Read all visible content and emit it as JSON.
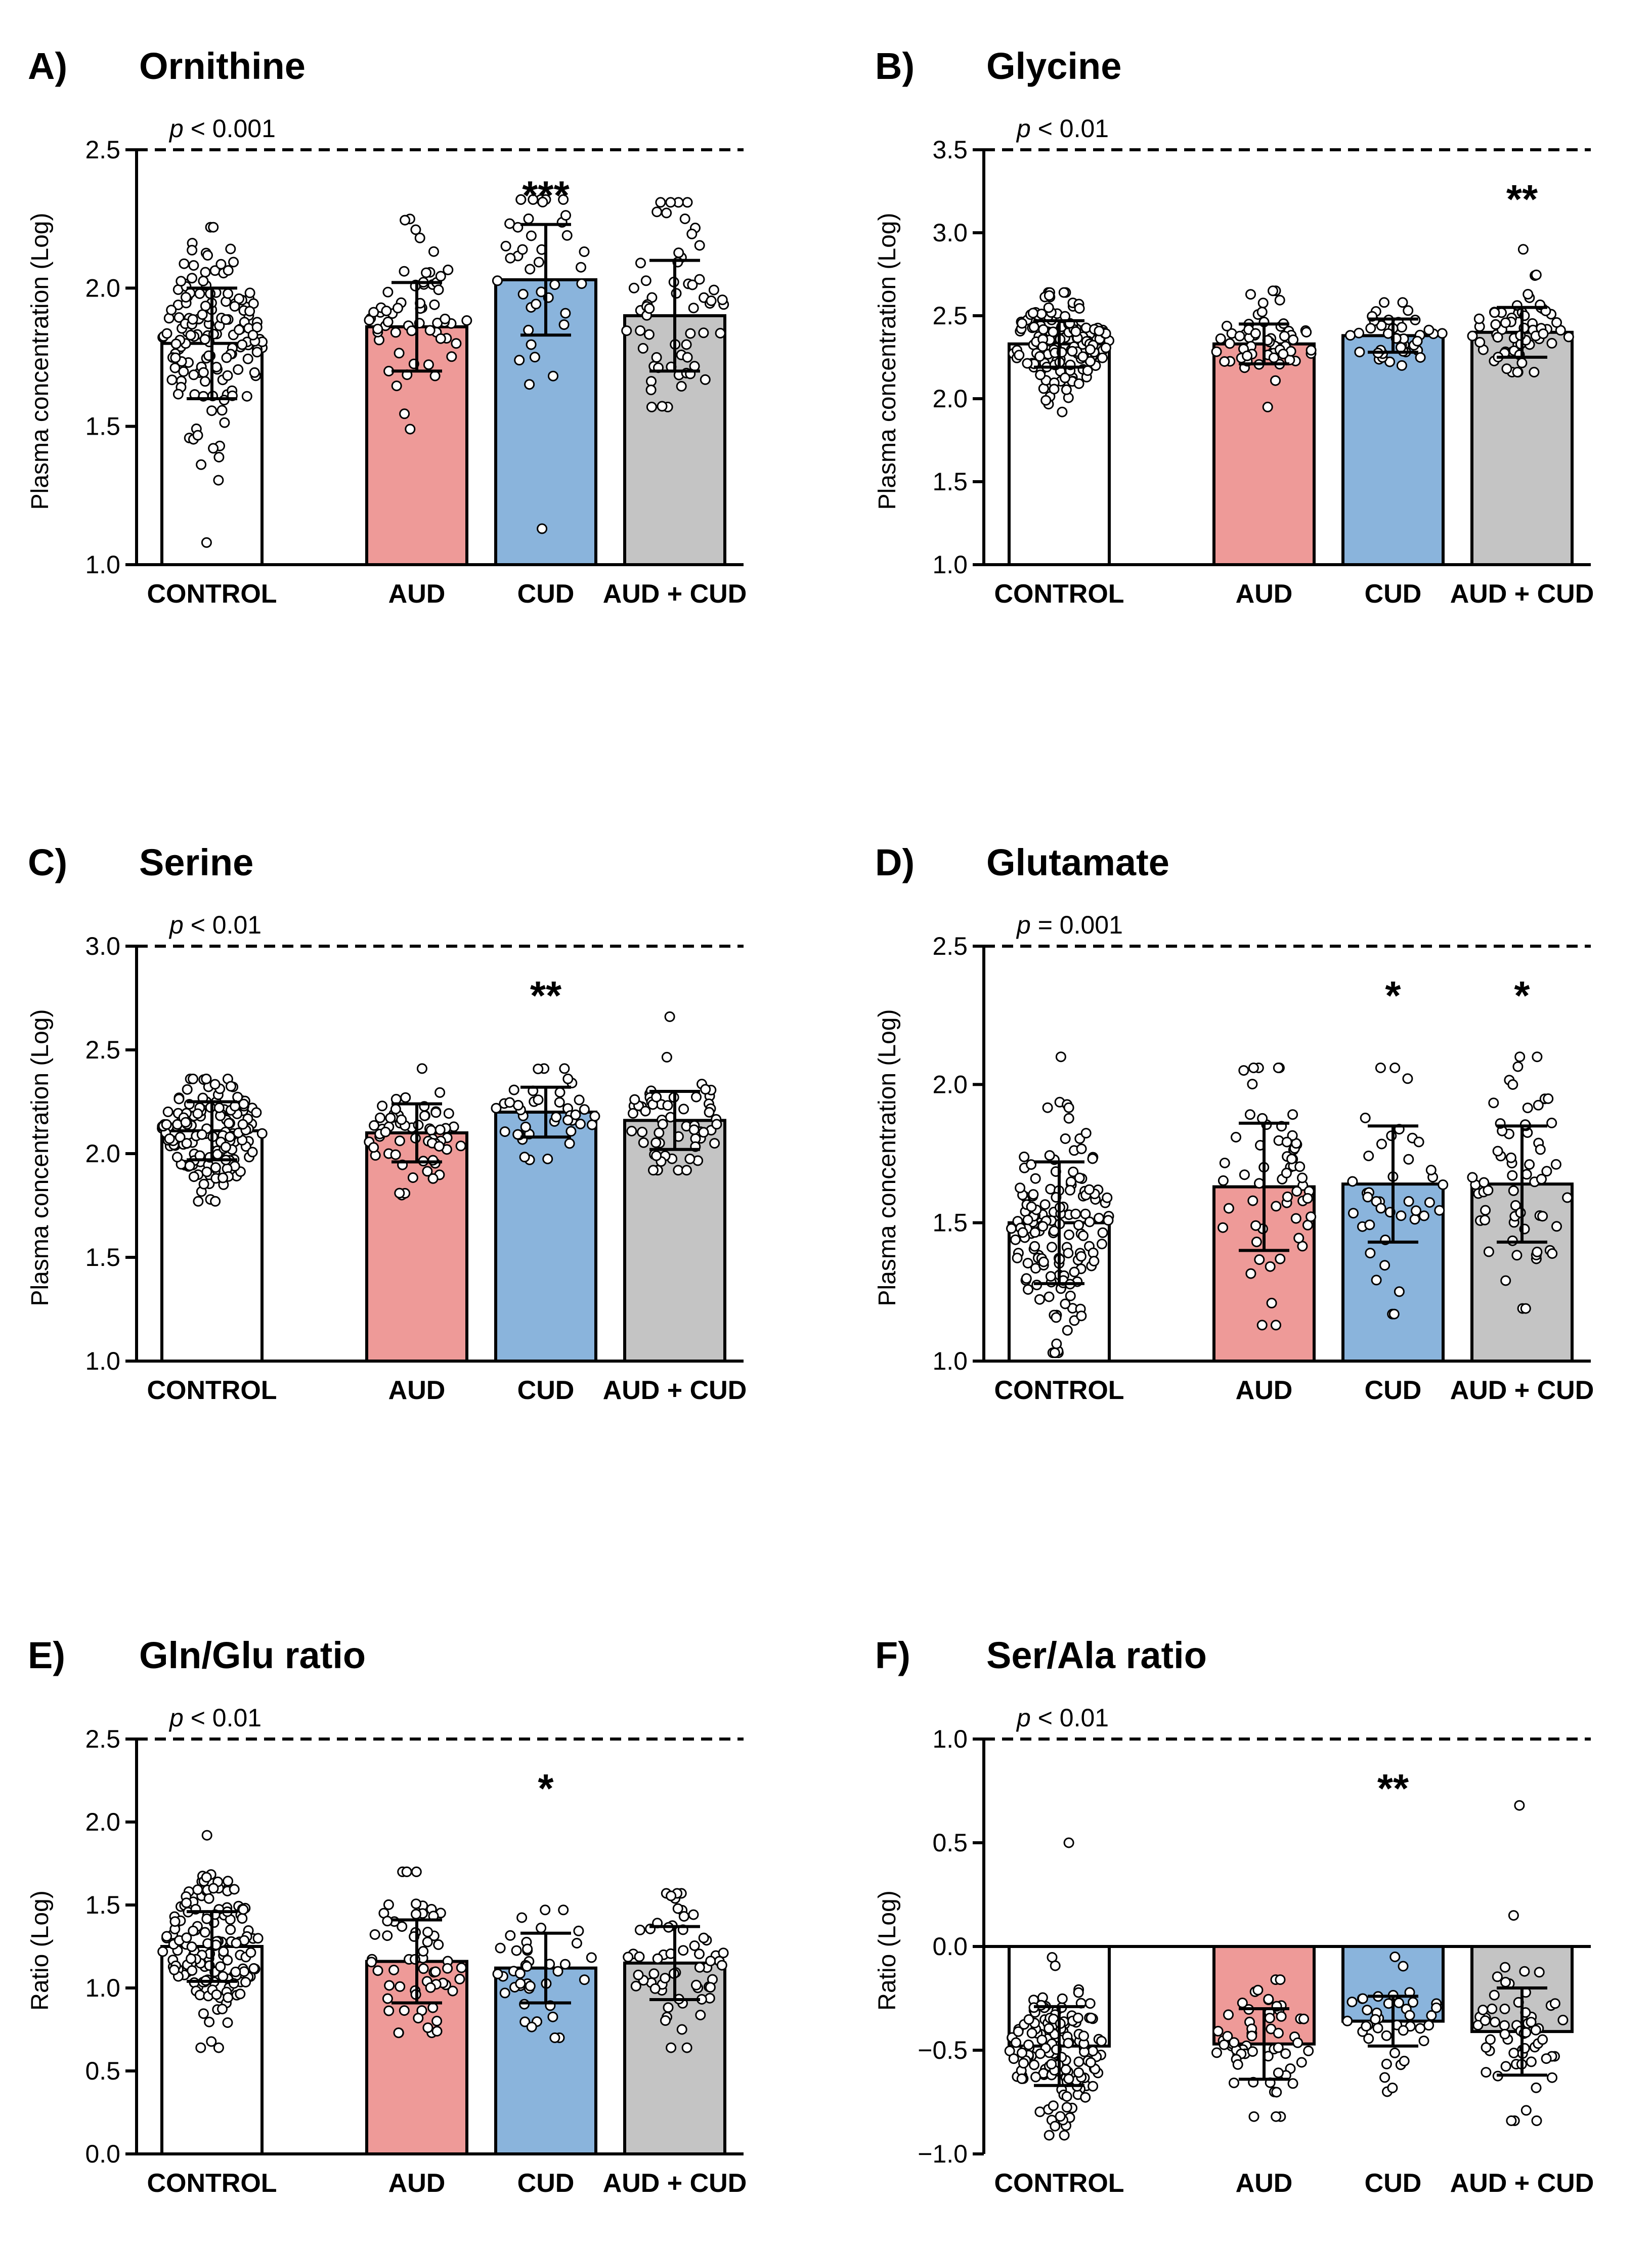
{
  "figure": {
    "category_colors": {
      "CONTROL": "#ffffff",
      "AUD": "#ee9a98",
      "CUD": "#8ab4dc",
      "AUD + CUD": "#c4c4c4"
    }
  },
  "chart_data": [
    {
      "type": "bar",
      "letter": "A)",
      "title": "Ornithine",
      "ylabel": "Plasma concentration (Log)",
      "ylim": [
        1.0,
        2.5
      ],
      "yticks": [
        "1.0",
        "1.5",
        "2.0",
        "2.5"
      ],
      "categories": [
        "CONTROL",
        "AUD",
        "CUD",
        "AUD + CUD"
      ],
      "values": [
        1.8,
        1.86,
        2.03,
        1.9
      ],
      "sd": [
        0.2,
        0.16,
        0.2,
        0.2
      ],
      "n": [
        150,
        60,
        40,
        60
      ],
      "range": [
        [
          1.08,
          2.22
        ],
        [
          1.49,
          2.25
        ],
        [
          1.13,
          2.32
        ],
        [
          1.57,
          2.31
        ]
      ],
      "pvalue_prefix": "p",
      "pvalue_rest": " < 0.001",
      "pvalue_line": 2.5,
      "significance": [
        "",
        "",
        "***",
        ""
      ]
    },
    {
      "type": "bar",
      "letter": "B)",
      "title": "Glycine",
      "ylabel": "Plasma concentration (Log)",
      "ylim": [
        1.0,
        3.5
      ],
      "yticks": [
        "1.0",
        "1.5",
        "2.0",
        "2.5",
        "3.0",
        "3.5"
      ],
      "categories": [
        "CONTROL",
        "AUD",
        "CUD",
        "AUD + CUD"
      ],
      "values": [
        2.33,
        2.33,
        2.38,
        2.4
      ],
      "sd": [
        0.14,
        0.12,
        0.1,
        0.15
      ],
      "n": [
        150,
        60,
        40,
        60
      ],
      "range": [
        [
          1.92,
          2.64
        ],
        [
          1.95,
          2.65
        ],
        [
          2.2,
          2.58
        ],
        [
          2.16,
          2.9
        ]
      ],
      "pvalue_prefix": "p",
      "pvalue_rest": " < 0.01",
      "pvalue_line": 3.5,
      "significance": [
        "",
        "",
        "",
        "**"
      ]
    },
    {
      "type": "bar",
      "letter": "C)",
      "title": "Serine",
      "ylabel": "Plasma concentration (Log)",
      "ylim": [
        1.0,
        3.0
      ],
      "yticks": [
        "1.0",
        "1.5",
        "2.0",
        "2.5",
        "3.0"
      ],
      "categories": [
        "CONTROL",
        "AUD",
        "CUD",
        "AUD + CUD"
      ],
      "values": [
        2.11,
        2.1,
        2.2,
        2.16
      ],
      "sd": [
        0.14,
        0.14,
        0.12,
        0.14
      ],
      "n": [
        150,
        60,
        40,
        60
      ],
      "range": [
        [
          1.77,
          2.36
        ],
        [
          1.8,
          2.41
        ],
        [
          1.97,
          2.41
        ],
        [
          1.92,
          2.66
        ]
      ],
      "pvalue_prefix": "p",
      "pvalue_rest": " < 0.01",
      "pvalue_line": 3.0,
      "significance": [
        "",
        "",
        "**",
        ""
      ]
    },
    {
      "type": "bar",
      "letter": "D)",
      "title": "Glutamate",
      "ylabel": "Plasma concentration (Log)",
      "ylim": [
        1.0,
        2.5
      ],
      "yticks": [
        "1.0",
        "1.5",
        "2.0",
        "2.5"
      ],
      "categories": [
        "CONTROL",
        "AUD",
        "CUD",
        "AUD + CUD"
      ],
      "values": [
        1.5,
        1.63,
        1.64,
        1.64
      ],
      "sd": [
        0.22,
        0.23,
        0.21,
        0.21
      ],
      "n": [
        150,
        60,
        40,
        60
      ],
      "range": [
        [
          1.03,
          2.1
        ],
        [
          1.13,
          2.06
        ],
        [
          1.17,
          2.06
        ],
        [
          1.19,
          2.1
        ]
      ],
      "pvalue_prefix": "p",
      "pvalue_rest": " = 0.001",
      "pvalue_line": 2.5,
      "significance": [
        "",
        "",
        "*",
        "*"
      ]
    },
    {
      "type": "bar",
      "letter": "E)",
      "title": "Gln/Glu ratio",
      "ylabel": "Ratio (Log)",
      "ylim": [
        0.0,
        2.5
      ],
      "yticks": [
        "0.0",
        "0.5",
        "1.0",
        "1.5",
        "2.0",
        "2.5"
      ],
      "categories": [
        "CONTROL",
        "AUD",
        "CUD",
        "AUD + CUD"
      ],
      "values": [
        1.25,
        1.16,
        1.12,
        1.15
      ],
      "sd": [
        0.21,
        0.25,
        0.21,
        0.22
      ],
      "n": [
        150,
        60,
        40,
        60
      ],
      "range": [
        [
          0.64,
          1.92
        ],
        [
          0.73,
          1.7
        ],
        [
          0.7,
          1.47
        ],
        [
          0.64,
          1.57
        ]
      ],
      "pvalue_prefix": "p",
      "pvalue_rest": " < 0.01",
      "pvalue_line": 2.5,
      "significance": [
        "",
        "",
        "*",
        ""
      ]
    },
    {
      "type": "bar",
      "letter": "F)",
      "title": "Ser/Ala ratio",
      "ylabel": "Ratio (Log)",
      "ylim": [
        -1.0,
        1.0
      ],
      "yticks": [
        "−1.0",
        "−0.5",
        "0.0",
        "0.5",
        "1.0"
      ],
      "categories": [
        "CONTROL",
        "AUD",
        "CUD",
        "AUD + CUD"
      ],
      "values": [
        -0.48,
        -0.47,
        -0.36,
        -0.41
      ],
      "sd": [
        0.19,
        0.17,
        0.12,
        0.21
      ],
      "n": [
        150,
        60,
        40,
        60
      ],
      "range": [
        [
          -0.91,
          0.5
        ],
        [
          -0.82,
          -0.16
        ],
        [
          -0.7,
          -0.05
        ],
        [
          -0.84,
          0.68
        ]
      ],
      "pvalue_prefix": "p",
      "pvalue_rest": " < 0.01",
      "pvalue_line": 1.0,
      "significance": [
        "",
        "",
        "**",
        ""
      ]
    }
  ]
}
